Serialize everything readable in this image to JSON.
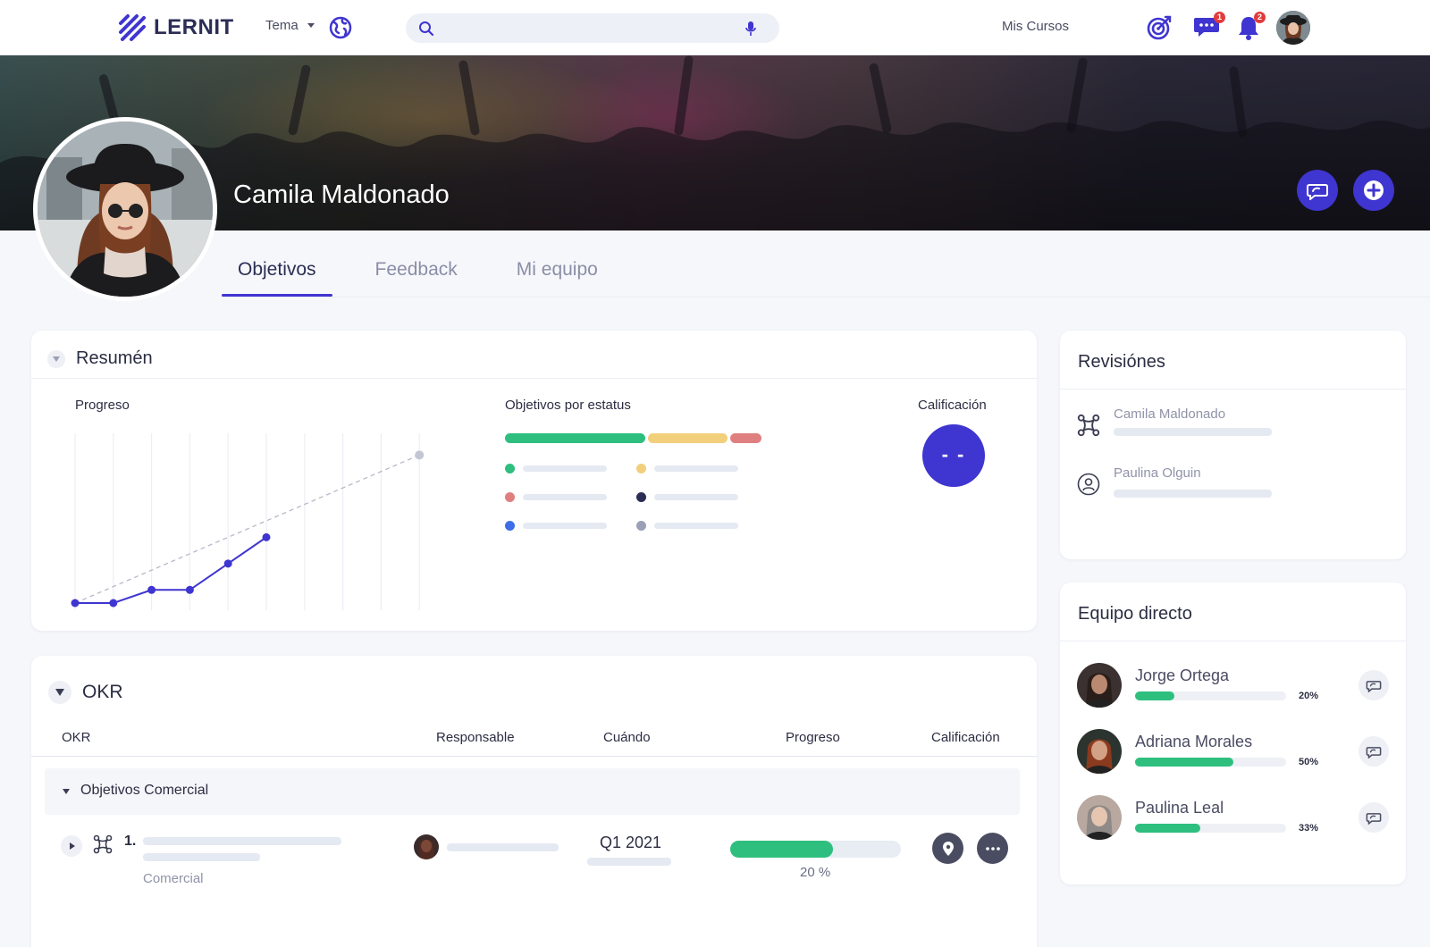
{
  "nav": {
    "logo_text": "LERNIT",
    "theme_label": "Tema",
    "search_placeholder": "",
    "courses_label": "Mis Cursos",
    "messages_badge": "1",
    "notifications_badge": "2"
  },
  "profile": {
    "name": "Camila Maldonado"
  },
  "tabs": [
    {
      "label": "Objetivos",
      "active": true
    },
    {
      "label": "Feedback",
      "active": false
    },
    {
      "label": "Mi equipo",
      "active": false
    }
  ],
  "resumen": {
    "title": "Resumén",
    "progress_label": "Progreso",
    "status_label": "Objetivos por estatus",
    "grade_label": "Calificación",
    "grade_value": "- -",
    "status_bar_segments": [
      {
        "color": "#2ebf7f",
        "fraction": 0.55
      },
      {
        "color": "#f2cf7b",
        "fraction": 0.32
      },
      {
        "color": "#e07f7f",
        "fraction": 0.13
      }
    ],
    "status_legend_colors": [
      "#2ebf7f",
      "#f2cf7b",
      "#e07f7f",
      "#2b2d55",
      "#3f6de8",
      "#9ca0b4"
    ]
  },
  "chart_data": {
    "type": "line",
    "title": "Progreso",
    "xlabel": "",
    "ylabel": "",
    "grid": "vertical",
    "series": [
      {
        "values": [
          0,
          0,
          4,
          4,
          12,
          20
        ],
        "color": "#3f35d0",
        "style": "solid"
      },
      {
        "values": [
          0,
          null,
          null,
          null,
          null,
          null,
          null,
          null,
          null,
          45
        ],
        "color": "#b6b9c8",
        "style": "dashed"
      }
    ],
    "x_count": 10,
    "ylim": [
      0,
      80
    ]
  },
  "okr": {
    "title": "OKR",
    "columns": {
      "okr": "OKR",
      "owner": "Responsable",
      "when": "Cuándo",
      "progress": "Progreso",
      "grade": "Calificación"
    },
    "group": "Objetivos Comercial",
    "row": {
      "index": "1.",
      "category": "Comercial",
      "when": "Q1 2021",
      "progress": 0.2,
      "progress_label": "20 %"
    }
  },
  "revisiones": {
    "title": "Revisiónes",
    "items": [
      {
        "name": "Camila Maldonado",
        "icon": "objective-icon"
      },
      {
        "name": "Paulina Olguin",
        "icon": "user-circle-icon"
      }
    ]
  },
  "equipo": {
    "title": "Equipo directo",
    "members": [
      {
        "name": "Jorge Ortega",
        "progress": 0.2,
        "label": "20%"
      },
      {
        "name": "Adriana Morales",
        "progress": 0.5,
        "label": "50%"
      },
      {
        "name": "Paulina Leal",
        "progress": 0.33,
        "label": "33%"
      }
    ]
  }
}
